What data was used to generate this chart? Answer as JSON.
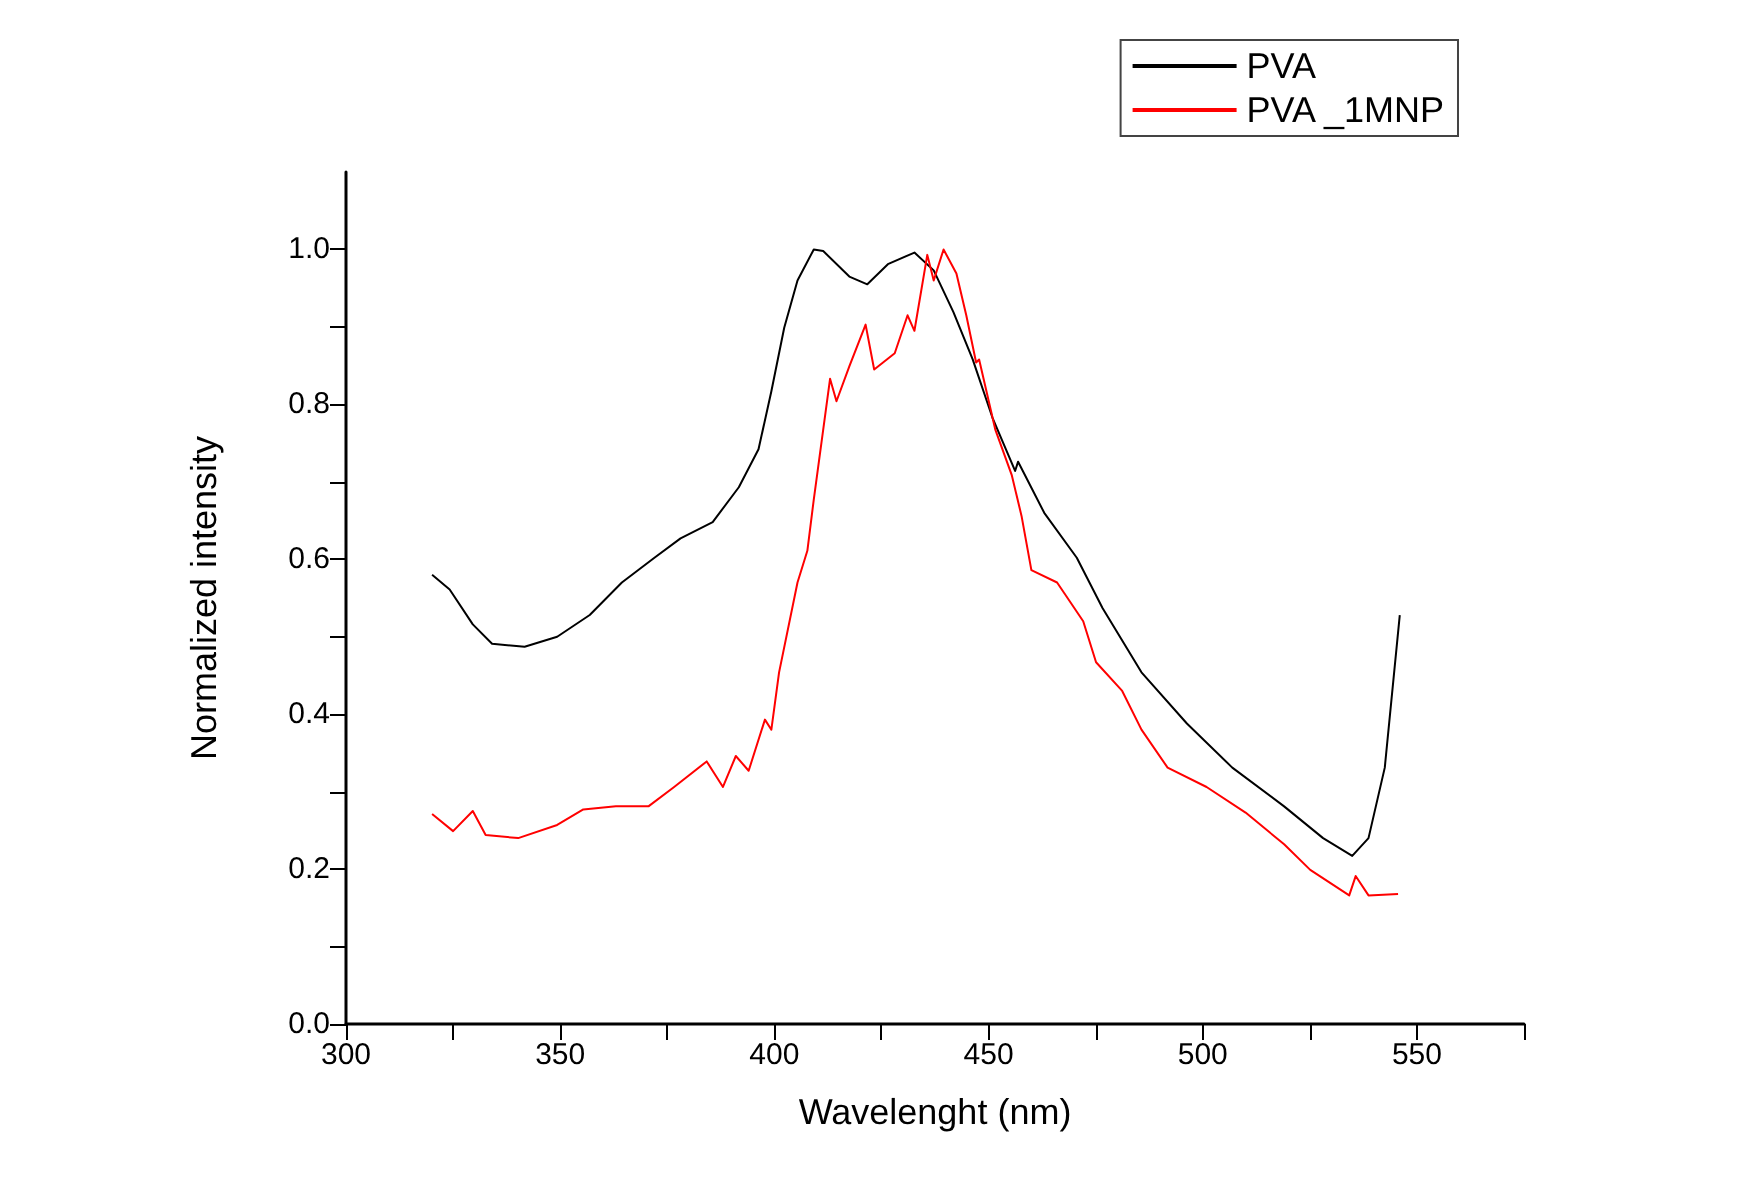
{
  "chart_data": {
    "type": "line",
    "xlabel": "Wavelenght (nm)",
    "ylabel": "Normalized intensity",
    "legend": "top right",
    "grid": false,
    "marker": "none",
    "line_style": "solid",
    "xlim": [
      300,
      575
    ],
    "xticks": [
      300,
      {
        "value": 325,
        "label": null
      },
      350,
      {
        "value": 375,
        "label": null
      },
      400,
      {
        "value": 425,
        "label": null
      },
      450,
      {
        "value": 475,
        "label": null
      },
      500,
      {
        "value": 525,
        "label": null
      },
      550,
      {
        "value": 575,
        "label": null
      }
    ],
    "ylim": [
      0,
      1.1
    ],
    "yticks": [
      {
        "value": 0,
        "label": "0.0"
      },
      {
        "value": 0.1,
        "label": null
      },
      {
        "value": 0.2,
        "label": "0.2"
      },
      {
        "value": 0.3,
        "label": null
      },
      {
        "value": 0.4,
        "label": "0.4"
      },
      {
        "value": 0.5,
        "label": null
      },
      {
        "value": 0.6,
        "label": "0.6"
      },
      {
        "value": 0.7,
        "label": null
      },
      {
        "value": 0.8,
        "label": "0.8"
      },
      {
        "value": 0.9,
        "label": null
      },
      {
        "value": 1.0,
        "label": "1.0"
      }
    ],
    "series": [
      {
        "name": "PVA",
        "color": "#000000",
        "x": [
          320.1,
          324.2,
          329.6,
          334.1,
          341.7,
          349.3,
          356.9,
          364.4,
          372,
          378.1,
          385.6,
          391.7,
          396.3,
          399.3,
          402.3,
          405.4,
          409.2,
          411.4,
          417.5,
          421.7,
          426.5,
          432.7,
          437.2,
          441.8,
          446.3,
          450.9,
          456.2,
          456.9,
          463,
          470.6,
          476.6,
          485.7,
          496.3,
          506.9,
          519,
          528.1,
          534.9,
          538.7,
          542.5,
          546
        ],
        "values": [
          0.58,
          0.561,
          0.516,
          0.491,
          0.487,
          0.5,
          0.528,
          0.57,
          0.602,
          0.627,
          0.648,
          0.693,
          0.742,
          0.817,
          0.899,
          0.96,
          1.0,
          0.998,
          0.965,
          0.955,
          0.981,
          0.996,
          0.973,
          0.919,
          0.858,
          0.783,
          0.714,
          0.726,
          0.66,
          0.602,
          0.537,
          0.454,
          0.388,
          0.331,
          0.281,
          0.24,
          0.217,
          0.24,
          0.331,
          0.528
        ]
      },
      {
        "name": "PVA _1MNP",
        "color": "#ff0000",
        "x": [
          320.1,
          325,
          329.6,
          332.6,
          340.2,
          349.3,
          355.4,
          363,
          370.6,
          376.6,
          384.2,
          388,
          391,
          394,
          397.8,
          399.3,
          401.1,
          405.4,
          407.7,
          409.2,
          413,
          414.5,
          417.5,
          421.3,
          423.3,
          428.1,
          431.1,
          432.7,
          435.7,
          437.2,
          439.5,
          442.5,
          444.8,
          447.1,
          447.8,
          451.6,
          455.4,
          457.7,
          460,
          466,
          472.1,
          475.1,
          481.2,
          485.7,
          491.8,
          500.9,
          510,
          519,
          525.1,
          534.2,
          535.7,
          538.7,
          545.6
        ],
        "values": [
          0.271,
          0.249,
          0.275,
          0.244,
          0.24,
          0.257,
          0.277,
          0.281,
          0.281,
          0.306,
          0.339,
          0.306,
          0.346,
          0.327,
          0.393,
          0.38,
          0.454,
          0.57,
          0.611,
          0.677,
          0.833,
          0.804,
          0.849,
          0.903,
          0.845,
          0.866,
          0.915,
          0.895,
          0.993,
          0.96,
          1.0,
          0.969,
          0.915,
          0.854,
          0.858,
          0.767,
          0.709,
          0.656,
          0.586,
          0.57,
          0.52,
          0.467,
          0.43,
          0.38,
          0.331,
          0.306,
          0.273,
          0.232,
          0.199,
          0.166,
          0.191,
          0.166,
          0.168
        ]
      }
    ]
  }
}
